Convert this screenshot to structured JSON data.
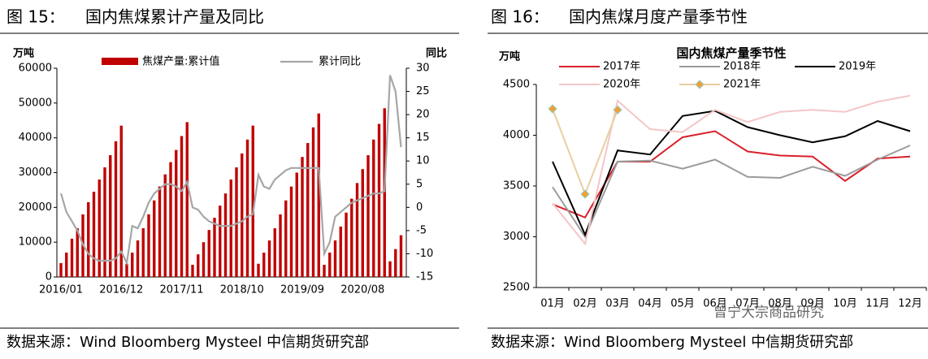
{
  "figures": [
    {
      "number": "图 15：",
      "caption": "国内焦煤累计产量及同比",
      "source": "数据来源：Wind Bloomberg Mysteel 中信期货研究部"
    },
    {
      "number": "图 16：",
      "caption": "国内焦煤月度产量季节性",
      "source": "数据来源：Wind Bloomberg Mysteel 中信期货研究部"
    }
  ],
  "watermark": "曾宁大宗商品研究",
  "chart_data": [
    {
      "type": "bar",
      "y_label": "万吨",
      "y2_label": "同比",
      "categories": [
        "2016/01",
        null,
        null,
        null,
        null,
        null,
        null,
        null,
        null,
        null,
        null,
        "2016/12",
        null,
        null,
        null,
        null,
        null,
        null,
        null,
        null,
        null,
        null,
        "2017/11",
        null,
        null,
        null,
        null,
        null,
        null,
        null,
        null,
        null,
        null,
        "2018/10",
        null,
        null,
        null,
        null,
        null,
        null,
        null,
        null,
        null,
        null,
        "2019/09",
        null,
        null,
        null,
        null,
        null,
        null,
        null,
        null,
        null,
        null,
        "2020/08",
        null,
        null,
        null,
        null,
        null,
        null,
        null
      ],
      "series": [
        {
          "name": "焦煤产量:累计值",
          "type": "bar",
          "color": "#c00000",
          "values": [
            4000,
            7000,
            11000,
            14000,
            18000,
            21500,
            24500,
            28000,
            31500,
            35000,
            39000,
            43500,
            3800,
            7000,
            10500,
            14000,
            18000,
            22000,
            26000,
            29500,
            33000,
            36500,
            40500,
            44500,
            3500,
            6500,
            10000,
            13500,
            17000,
            20500,
            24000,
            28000,
            31500,
            35500,
            39500,
            43500,
            3800,
            7000,
            10500,
            14000,
            18000,
            22000,
            26000,
            30000,
            34500,
            38500,
            43000,
            47000,
            3500,
            7000,
            10500,
            14500,
            18500,
            22500,
            27000,
            31000,
            35000,
            39500,
            44000,
            48500,
            4500,
            8000,
            12000
          ]
        },
        {
          "name": "累计同比",
          "type": "line",
          "axis": "y2",
          "color": "#a6a6a6",
          "values": [
            3,
            -1,
            -3,
            -5,
            -8,
            -10,
            -11,
            -11.5,
            -11.5,
            -11.5,
            -11,
            -9.5,
            -12,
            -4,
            -4.5,
            -2,
            1,
            3,
            4,
            5,
            5,
            4.5,
            3.5,
            5.5,
            0,
            -0.5,
            -2,
            -3,
            -3.5,
            -4,
            -4,
            -4,
            -3.5,
            -3,
            -2,
            -1.5,
            7,
            4.5,
            4,
            6,
            7,
            8,
            8.5,
            8.5,
            8.5,
            8.5,
            8.5,
            8.5,
            -10,
            -7.5,
            -2,
            -1,
            0,
            1,
            1.5,
            2,
            2.5,
            3,
            3,
            3.5,
            28.5,
            25,
            13
          ]
        }
      ],
      "ylim": [
        0,
        60000
      ],
      "yticks": [
        0,
        10000,
        20000,
        30000,
        40000,
        50000,
        60000
      ],
      "y2lim": [
        -15,
        30
      ],
      "y2ticks": [
        -15,
        -10,
        -5,
        0,
        5,
        10,
        15,
        20,
        25,
        30
      ],
      "grid": false
    },
    {
      "type": "line",
      "title": "国内焦煤产量季节性",
      "y_label": "万吨",
      "categories": [
        "01月",
        "02月",
        "03月",
        "04月",
        "05月",
        "06月",
        "07月",
        "08月",
        "09月",
        "10月",
        "11月",
        "12月"
      ],
      "series": [
        {
          "name": "2017年",
          "color": "#d9202a",
          "values": [
            3320,
            3190,
            3740,
            3740,
            3980,
            4040,
            3840,
            3800,
            3790,
            3550,
            3770,
            3790
          ]
        },
        {
          "name": "2018年",
          "color": "#9b9b9b",
          "values": [
            3490,
            3000,
            3740,
            3750,
            3670,
            3760,
            3590,
            3580,
            3690,
            3600,
            3760,
            3900
          ]
        },
        {
          "name": "2019年",
          "color": "#000000",
          "values": [
            3740,
            3020,
            3850,
            3810,
            4190,
            4240,
            4080,
            4000,
            3930,
            3990,
            4140,
            4040
          ]
        },
        {
          "name": "2020年",
          "color": "#f4c6c8",
          "values": [
            3330,
            2930,
            4340,
            4060,
            4030,
            4250,
            4130,
            4230,
            4250,
            4230,
            4330,
            4390
          ]
        },
        {
          "name": "2021年",
          "color": "#e8cf9f",
          "marker_color": "#f0a030",
          "values": [
            4260,
            3420,
            4250,
            null,
            null,
            null,
            null,
            null,
            null,
            null,
            null,
            null
          ]
        }
      ],
      "ylim": [
        2500,
        4500
      ],
      "yticks": [
        2500,
        3000,
        3500,
        4000,
        4500
      ],
      "grid": false
    }
  ]
}
